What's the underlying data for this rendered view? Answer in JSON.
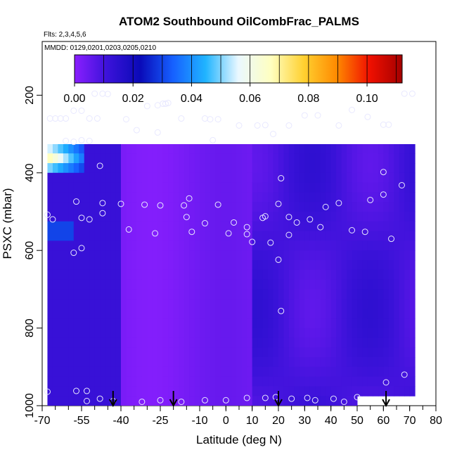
{
  "chart_data": {
    "type": "heatmap",
    "title": "ATOM2 Southbound OilCombFrac_PALMS",
    "subtitle_flights": "Flts: 2,3,4,5,6",
    "subtitle_dates": "MMDD: 0129,0201,0203,0205,0210",
    "xlabel": "Latitude (deg N)",
    "ylabel": "PSXC (mbar)",
    "xlim": [
      -70,
      80
    ],
    "ylim": [
      1000,
      0
    ],
    "x_ticks": [
      -70,
      -55,
      -40,
      -25,
      -10,
      0,
      10,
      20,
      30,
      40,
      50,
      60,
      70,
      80
    ],
    "y_ticks": [
      200,
      400,
      600,
      800,
      1000
    ],
    "colorbar": {
      "range": [
        0,
        0.112
      ],
      "ticks": [
        0.0,
        0.02,
        0.04,
        0.06,
        0.08,
        0.1
      ],
      "tick_labels": [
        "0.00",
        "0.02",
        "0.04",
        "0.06",
        "0.08",
        "0.10"
      ],
      "colors": [
        "#8a1fff",
        "#3b12d9",
        "#0a0ab8",
        "#1660ff",
        "#20b4ff",
        "#eaf8ff",
        "#ffffc0",
        "#ffd030",
        "#ff8a00",
        "#f01000",
        "#a40000"
      ]
    },
    "profile_markers_lat": [
      -43,
      -20,
      20,
      61
    ],
    "grid": false,
    "legend": "none",
    "value_description": "Oil combustion fraction shown by color in a latitude-pressure curtain; high values (0.06–0.11) near -65 to -55 deg N between 200 and 400 mbar; elevated 0.02–0.04 near -60 deg N at 520–560 mbar; background 0.00–0.02 elsewhere."
  }
}
